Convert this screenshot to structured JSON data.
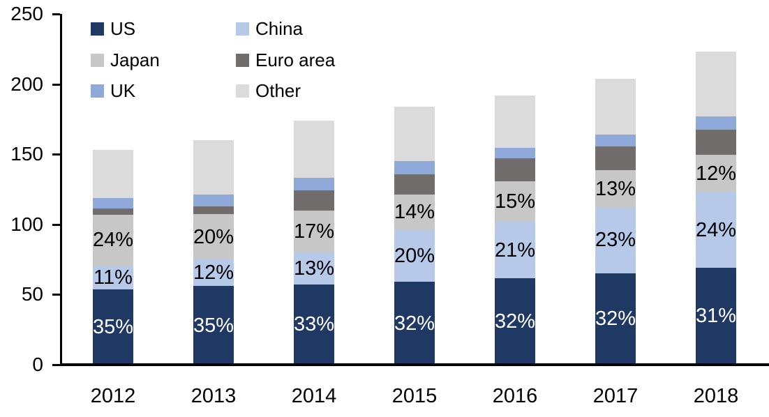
{
  "chart_data": {
    "type": "bar",
    "stacked": true,
    "title": "",
    "categories": [
      "2012",
      "2013",
      "2014",
      "2015",
      "2016",
      "2017",
      "2018"
    ],
    "series": [
      {
        "name": "US",
        "color": "#1F3864",
        "values": [
          53.6,
          56.0,
          57.4,
          58.9,
          61.4,
          65.3,
          69.1
        ],
        "labels": [
          "35%",
          "35%",
          "33%",
          "32%",
          "32%",
          "32%",
          "31%"
        ],
        "label_color": "#FFFFFF"
      },
      {
        "name": "China",
        "color": "#B7C9E8",
        "values": [
          16.8,
          19.2,
          22.6,
          36.8,
          40.3,
          46.9,
          53.5
        ],
        "labels": [
          "11%",
          "12%",
          "13%",
          "20%",
          "21%",
          "23%",
          "24%"
        ],
        "label_color": "#000000"
      },
      {
        "name": "Japan",
        "color": "#C7C7C7",
        "values": [
          36.7,
          32.0,
          29.6,
          25.8,
          28.8,
          26.5,
          26.8
        ],
        "labels": [
          "24%",
          "20%",
          "17%",
          "14%",
          "15%",
          "13%",
          "12%"
        ],
        "label_color": "#000000"
      },
      {
        "name": "Euro area",
        "color": "#726D6D",
        "values": [
          4.0,
          5.4,
          14.5,
          14.4,
          16.5,
          16.9,
          18.0
        ],
        "labels": null,
        "label_color": null
      },
      {
        "name": "UK",
        "color": "#8FA9DB",
        "values": [
          7.5,
          8.5,
          9.0,
          9.0,
          7.5,
          8.5,
          9.3
        ],
        "labels": null,
        "label_color": null
      },
      {
        "name": "Other",
        "color": "#DBDBDB",
        "values": [
          34.4,
          38.9,
          40.9,
          39.1,
          37.5,
          39.9,
          46.3
        ],
        "labels": null,
        "label_color": null
      }
    ],
    "totals": [
      153,
      160,
      174,
      184,
      192,
      204,
      223
    ],
    "y_axis": {
      "min": 0,
      "max": 250,
      "step": 50,
      "ticks": [
        "0",
        "50",
        "100",
        "150",
        "200",
        "250"
      ]
    },
    "legend": {
      "position": "top-left",
      "order": [
        "US",
        "China",
        "Japan",
        "Euro area",
        "UK",
        "Other"
      ]
    },
    "grid": false
  }
}
